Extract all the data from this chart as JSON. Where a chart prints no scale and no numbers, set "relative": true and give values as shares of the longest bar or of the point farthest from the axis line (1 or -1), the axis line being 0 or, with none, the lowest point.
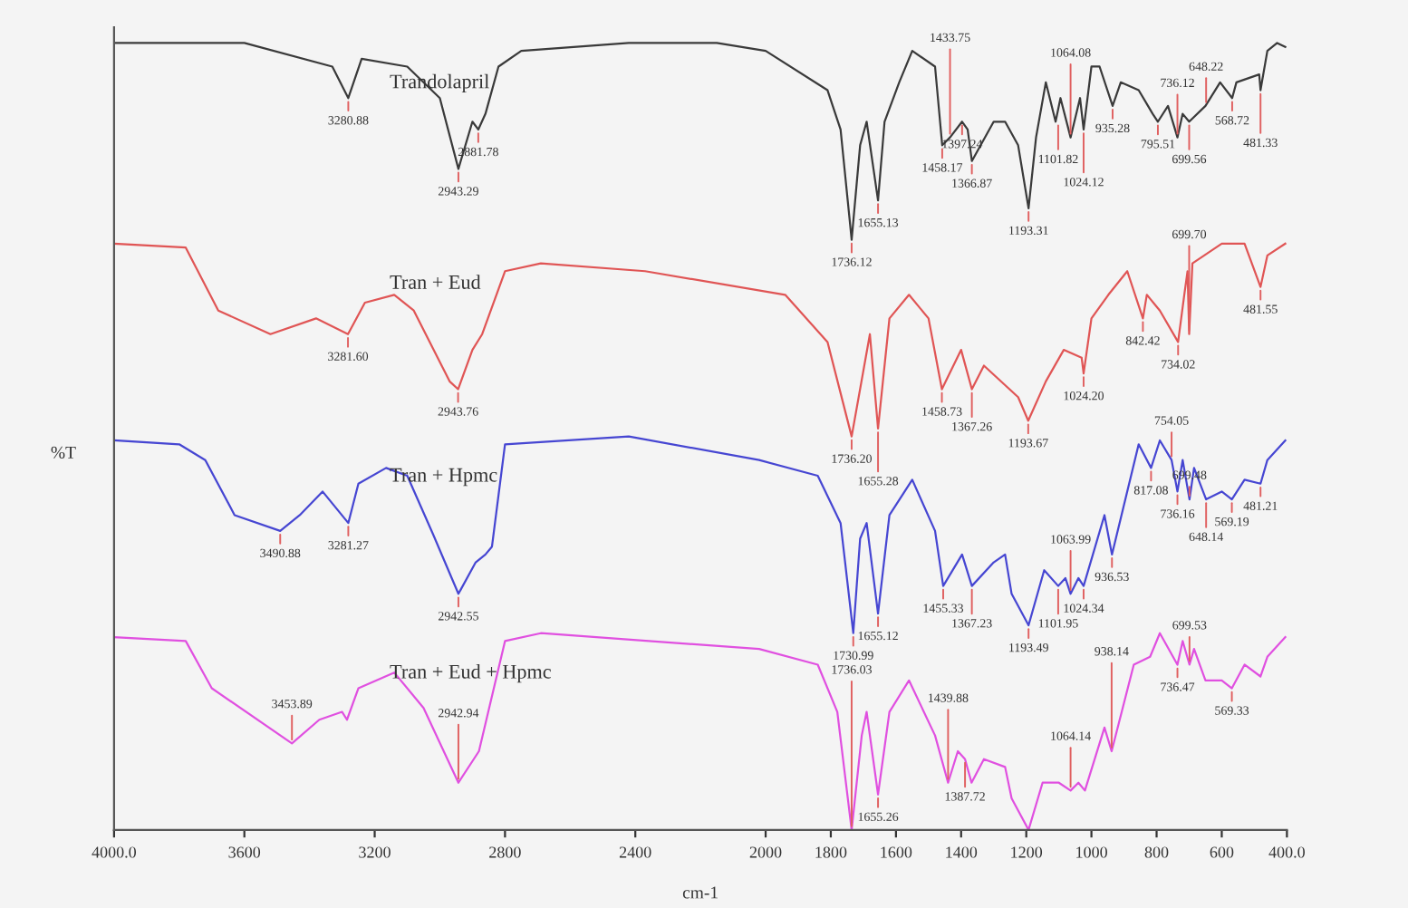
{
  "chart_data": {
    "type": "line",
    "relative": true,
    "xlabel": "cm-1",
    "ylabel": "%T",
    "legend": false,
    "grid": false,
    "tick_labels": "x",
    "xlim": [
      4000,
      400
    ],
    "xticks": [
      {
        "value": 4000,
        "label": "4000.0"
      },
      3600,
      3200,
      2800,
      2400,
      2000,
      1800,
      1600,
      1400,
      1200,
      1000,
      800,
      600,
      {
        "value": 400,
        "label": "400.0"
      }
    ],
    "series": [
      {
        "name": "Trandolapril",
        "color": "#3a3a3a",
        "x": [
          4000,
          3600,
          3330,
          3281,
          3240,
          3100,
          3000,
          2943,
          2900,
          2882,
          2860,
          2820,
          2750,
          2420,
          2150,
          2000,
          1810,
          1770,
          1736,
          1710,
          1690,
          1655,
          1635,
          1590,
          1550,
          1480,
          1458,
          1434,
          1397,
          1380,
          1367,
          1300,
          1265,
          1225,
          1193,
          1170,
          1140,
          1110,
          1095,
          1064,
          1035,
          1024,
          1000,
          975,
          935,
          910,
          855,
          812,
          796,
          765,
          736,
          720,
          700,
          650,
          605,
          568,
          555,
          485,
          481,
          460,
          430,
          405
        ],
        "values": [
          1.0,
          1.0,
          0.97,
          0.93,
          0.98,
          0.97,
          0.93,
          0.84,
          0.9,
          0.89,
          0.91,
          0.97,
          0.99,
          1.0,
          1.0,
          0.99,
          0.94,
          0.89,
          0.75,
          0.87,
          0.9,
          0.8,
          0.9,
          0.95,
          0.99,
          0.97,
          0.87,
          0.88,
          0.9,
          0.89,
          0.85,
          0.9,
          0.9,
          0.87,
          0.79,
          0.88,
          0.95,
          0.9,
          0.93,
          0.88,
          0.93,
          0.89,
          0.97,
          0.97,
          0.92,
          0.95,
          0.94,
          0.91,
          0.9,
          0.92,
          0.88,
          0.91,
          0.9,
          0.92,
          0.95,
          0.93,
          0.95,
          0.96,
          0.94,
          0.99,
          1.0,
          0.995
        ]
      },
      {
        "name": "Tran + Eud",
        "color": "#e05555",
        "x": [
          4000,
          3780,
          3680,
          3520,
          3380,
          3282,
          3230,
          3140,
          3080,
          2970,
          2944,
          2900,
          2870,
          2800,
          2690,
          2370,
          1940,
          1810,
          1736,
          1680,
          1655,
          1620,
          1560,
          1500,
          1459,
          1400,
          1367,
          1330,
          1225,
          1194,
          1140,
          1085,
          1030,
          1024,
          1000,
          948,
          890,
          842,
          830,
          790,
          734,
          715,
          705,
          700,
          690,
          600,
          530,
          481,
          460,
          405
        ],
        "values": [
          0.745,
          0.74,
          0.66,
          0.63,
          0.65,
          0.63,
          0.67,
          0.68,
          0.66,
          0.57,
          0.56,
          0.61,
          0.63,
          0.71,
          0.72,
          0.71,
          0.68,
          0.62,
          0.5,
          0.63,
          0.51,
          0.65,
          0.68,
          0.65,
          0.56,
          0.61,
          0.56,
          0.59,
          0.55,
          0.52,
          0.57,
          0.61,
          0.6,
          0.58,
          0.65,
          0.68,
          0.71,
          0.65,
          0.68,
          0.66,
          0.62,
          0.68,
          0.71,
          0.63,
          0.72,
          0.745,
          0.745,
          0.69,
          0.73,
          0.745
        ]
      },
      {
        "name": "Tran + Hpmc",
        "color": "#4646d2",
        "x": [
          4000,
          3800,
          3720,
          3630,
          3490,
          3430,
          3360,
          3281,
          3250,
          3165,
          3100,
          3020,
          2943,
          2890,
          2860,
          2840,
          2800,
          2420,
          2020,
          1840,
          1770,
          1731,
          1710,
          1690,
          1655,
          1620,
          1550,
          1480,
          1455,
          1397,
          1367,
          1300,
          1265,
          1245,
          1193,
          1145,
          1102,
          1080,
          1064,
          1040,
          1024,
          960,
          937,
          855,
          817,
          790,
          754,
          736,
          720,
          699,
          685,
          648,
          600,
          569,
          530,
          481,
          460,
          405
        ],
        "values": [
          0.495,
          0.49,
          0.47,
          0.4,
          0.38,
          0.4,
          0.43,
          0.39,
          0.44,
          0.46,
          0.45,
          0.375,
          0.3,
          0.34,
          0.35,
          0.36,
          0.49,
          0.5,
          0.47,
          0.45,
          0.39,
          0.25,
          0.37,
          0.39,
          0.275,
          0.4,
          0.445,
          0.38,
          0.31,
          0.35,
          0.31,
          0.34,
          0.35,
          0.3,
          0.26,
          0.33,
          0.31,
          0.32,
          0.3,
          0.32,
          0.31,
          0.4,
          0.35,
          0.49,
          0.46,
          0.495,
          0.47,
          0.43,
          0.47,
          0.42,
          0.46,
          0.42,
          0.43,
          0.42,
          0.445,
          0.44,
          0.47,
          0.495
        ]
      },
      {
        "name": "Tran + Eud + Hpmc",
        "color": "#e050e0",
        "x": [
          4000,
          3780,
          3700,
          3454,
          3370,
          3300,
          3285,
          3250,
          3140,
          3050,
          2943,
          2880,
          2800,
          2690,
          2020,
          1840,
          1780,
          1736,
          1705,
          1690,
          1655,
          1620,
          1560,
          1480,
          1440,
          1410,
          1388,
          1368,
          1330,
          1265,
          1245,
          1193,
          1150,
          1100,
          1064,
          1040,
          1020,
          960,
          938,
          870,
          820,
          790,
          736,
          720,
          699,
          685,
          650,
          600,
          569,
          530,
          481,
          460,
          405
        ],
        "values": [
          0.245,
          0.24,
          0.18,
          0.11,
          0.14,
          0.15,
          0.14,
          0.18,
          0.2,
          0.155,
          0.06,
          0.1,
          0.24,
          0.25,
          0.23,
          0.21,
          0.15,
          0.0,
          0.12,
          0.15,
          0.045,
          0.15,
          0.19,
          0.12,
          0.06,
          0.1,
          0.09,
          0.06,
          0.09,
          0.08,
          0.04,
          0.0,
          0.06,
          0.06,
          0.05,
          0.06,
          0.05,
          0.13,
          0.1,
          0.21,
          0.22,
          0.25,
          0.21,
          0.24,
          0.21,
          0.23,
          0.19,
          0.19,
          0.18,
          0.21,
          0.195,
          0.22,
          0.245
        ]
      }
    ],
    "annotations": [
      {
        "text": "3280.88",
        "x": 3281,
        "y": 0.93
      },
      {
        "text": "2943.29",
        "x": 2943,
        "y": 0.84
      },
      {
        "text": "2881.78",
        "x": 2882,
        "y": 0.89
      },
      {
        "text": "1736.12",
        "x": 1736,
        "y": 0.75
      },
      {
        "text": "1655.13",
        "x": 1655,
        "y": 0.8
      },
      {
        "text": "1458.17",
        "x": 1458,
        "y": 0.87
      },
      {
        "text": "1433.75",
        "x": 1434,
        "y": 0.88
      },
      {
        "text": "1397.24",
        "x": 1397,
        "y": 0.9
      },
      {
        "text": "1366.87",
        "x": 1367,
        "y": 0.85
      },
      {
        "text": "1193.31",
        "x": 1193,
        "y": 0.79
      },
      {
        "text": "1101.82",
        "x": 1102,
        "y": 0.9
      },
      {
        "text": "1064.08",
        "x": 1064,
        "y": 0.88
      },
      {
        "text": "1024.12",
        "x": 1024,
        "y": 0.89
      },
      {
        "text": "935.28",
        "x": 935,
        "y": 0.92
      },
      {
        "text": "795.51",
        "x": 796,
        "y": 0.9
      },
      {
        "text": "736.12",
        "x": 736,
        "y": 0.88
      },
      {
        "text": "699.56",
        "x": 700,
        "y": 0.9
      },
      {
        "text": "648.22",
        "x": 648,
        "y": 0.92
      },
      {
        "text": "568.72",
        "x": 568,
        "y": 0.93
      },
      {
        "text": "481.33",
        "x": 481,
        "y": 0.94
      },
      {
        "text": "3281.60",
        "x": 3282,
        "y": 0.63
      },
      {
        "text": "2943.76",
        "x": 2944,
        "y": 0.56
      },
      {
        "text": "1736.20",
        "x": 1736,
        "y": 0.5
      },
      {
        "text": "1655.28",
        "x": 1655,
        "y": 0.51
      },
      {
        "text": "1458.73",
        "x": 1459,
        "y": 0.56
      },
      {
        "text": "1367.26",
        "x": 1367,
        "y": 0.56
      },
      {
        "text": "1193.67",
        "x": 1194,
        "y": 0.52
      },
      {
        "text": "1024.20",
        "x": 1024,
        "y": 0.58
      },
      {
        "text": "842.42",
        "x": 842,
        "y": 0.65
      },
      {
        "text": "734.02",
        "x": 734,
        "y": 0.62
      },
      {
        "text": "699.70",
        "x": 700,
        "y": 0.63
      },
      {
        "text": "481.55",
        "x": 481,
        "y": 0.69
      },
      {
        "text": "3490.88",
        "x": 3490,
        "y": 0.38
      },
      {
        "text": "3281.27",
        "x": 3281,
        "y": 0.39
      },
      {
        "text": "2942.55",
        "x": 2943,
        "y": 0.3
      },
      {
        "text": "1730.99",
        "x": 1731,
        "y": 0.25
      },
      {
        "text": "1655.12",
        "x": 1655,
        "y": 0.275
      },
      {
        "text": "1455.33",
        "x": 1455,
        "y": 0.31
      },
      {
        "text": "1367.23",
        "x": 1367,
        "y": 0.31
      },
      {
        "text": "1193.49",
        "x": 1193,
        "y": 0.26
      },
      {
        "text": "1101.95",
        "x": 1102,
        "y": 0.31
      },
      {
        "text": "1063.99",
        "x": 1064,
        "y": 0.3
      },
      {
        "text": "1024.34",
        "x": 1024,
        "y": 0.31
      },
      {
        "text": "936.53",
        "x": 937,
        "y": 0.35
      },
      {
        "text": "817.08",
        "x": 817,
        "y": 0.46
      },
      {
        "text": "754.05",
        "x": 754,
        "y": 0.47
      },
      {
        "text": "736.16",
        "x": 736,
        "y": 0.43
      },
      {
        "text": "699.48",
        "x": 699,
        "y": 0.42
      },
      {
        "text": "648.14",
        "x": 648,
        "y": 0.42
      },
      {
        "text": "569.19",
        "x": 569,
        "y": 0.42
      },
      {
        "text": "481.21",
        "x": 481,
        "y": 0.44
      },
      {
        "text": "3453.89",
        "x": 3454,
        "y": 0.11
      },
      {
        "text": "2942.94",
        "x": 2943,
        "y": 0.06
      },
      {
        "text": "1736.03",
        "x": 1736,
        "y": 0.0
      },
      {
        "text": "1655.26",
        "x": 1655,
        "y": 0.045
      },
      {
        "text": "1439.88",
        "x": 1440,
        "y": 0.06
      },
      {
        "text": "1387.72",
        "x": 1388,
        "y": 0.09
      },
      {
        "text": "1064.14",
        "x": 1064,
        "y": 0.05
      },
      {
        "text": "938.14",
        "x": 938,
        "y": 0.1
      },
      {
        "text": "736.47",
        "x": 736,
        "y": 0.21
      },
      {
        "text": "699.53",
        "x": 699,
        "y": 0.21
      },
      {
        "text": "569.33",
        "x": 569,
        "y": 0.18
      }
    ]
  }
}
